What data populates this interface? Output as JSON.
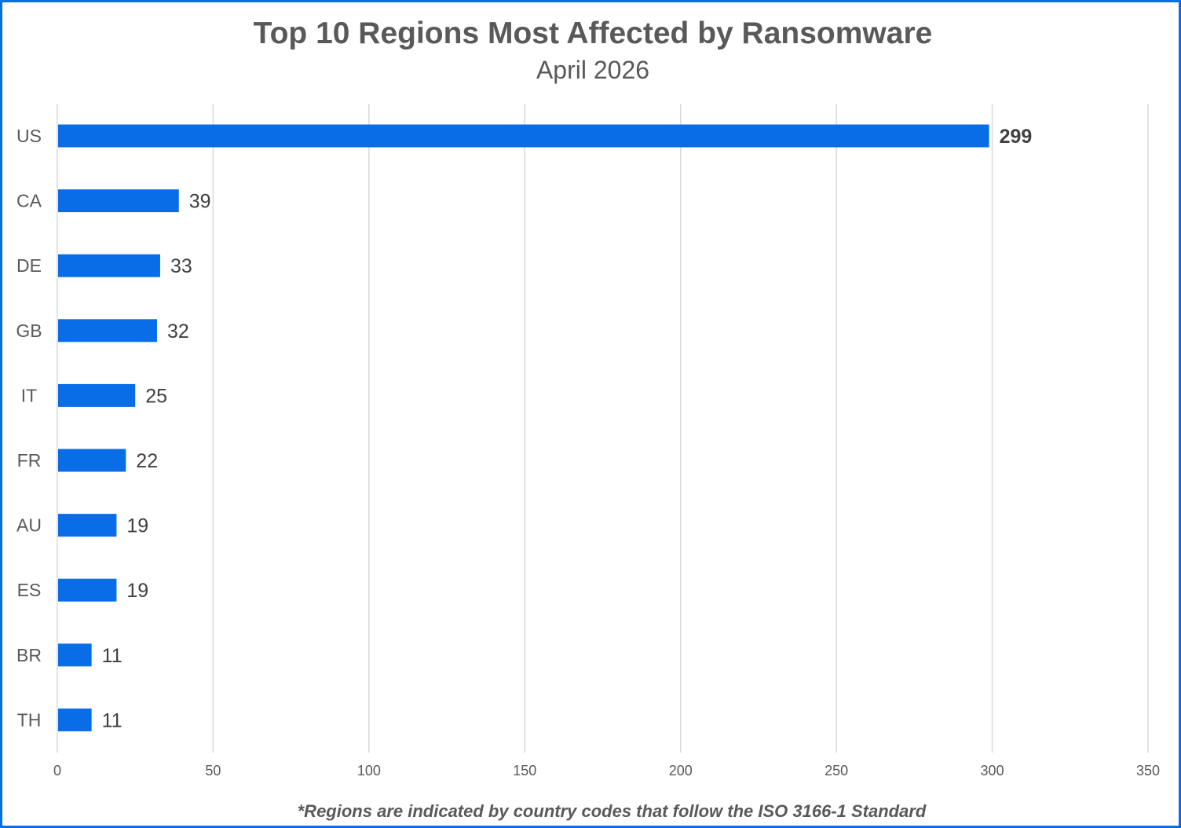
{
  "chart_data": {
    "type": "bar",
    "orientation": "horizontal",
    "title": "Top 10 Regions Most Affected by Ransomware",
    "subtitle": "April 2026",
    "footnote": "*Regions are indicated by country codes that follow the ISO 3166-1 Standard",
    "categories": [
      "US",
      "CA",
      "DE",
      "GB",
      "IT",
      "FR",
      "AU",
      "ES",
      "BR",
      "TH"
    ],
    "values": [
      299,
      39,
      33,
      32,
      25,
      22,
      19,
      19,
      11,
      11
    ],
    "xlim": [
      0,
      350
    ],
    "xticks": [
      0,
      50,
      100,
      150,
      200,
      250,
      300,
      350
    ],
    "xlabel": "",
    "ylabel": "",
    "grid": "vertical",
    "legend": "none",
    "data_labels": true,
    "highlighted_label": "US"
  },
  "colors": {
    "bar": "#0a6de8",
    "border": "#0a6de8",
    "grid": "#d9d9d9",
    "text": "#595959"
  }
}
